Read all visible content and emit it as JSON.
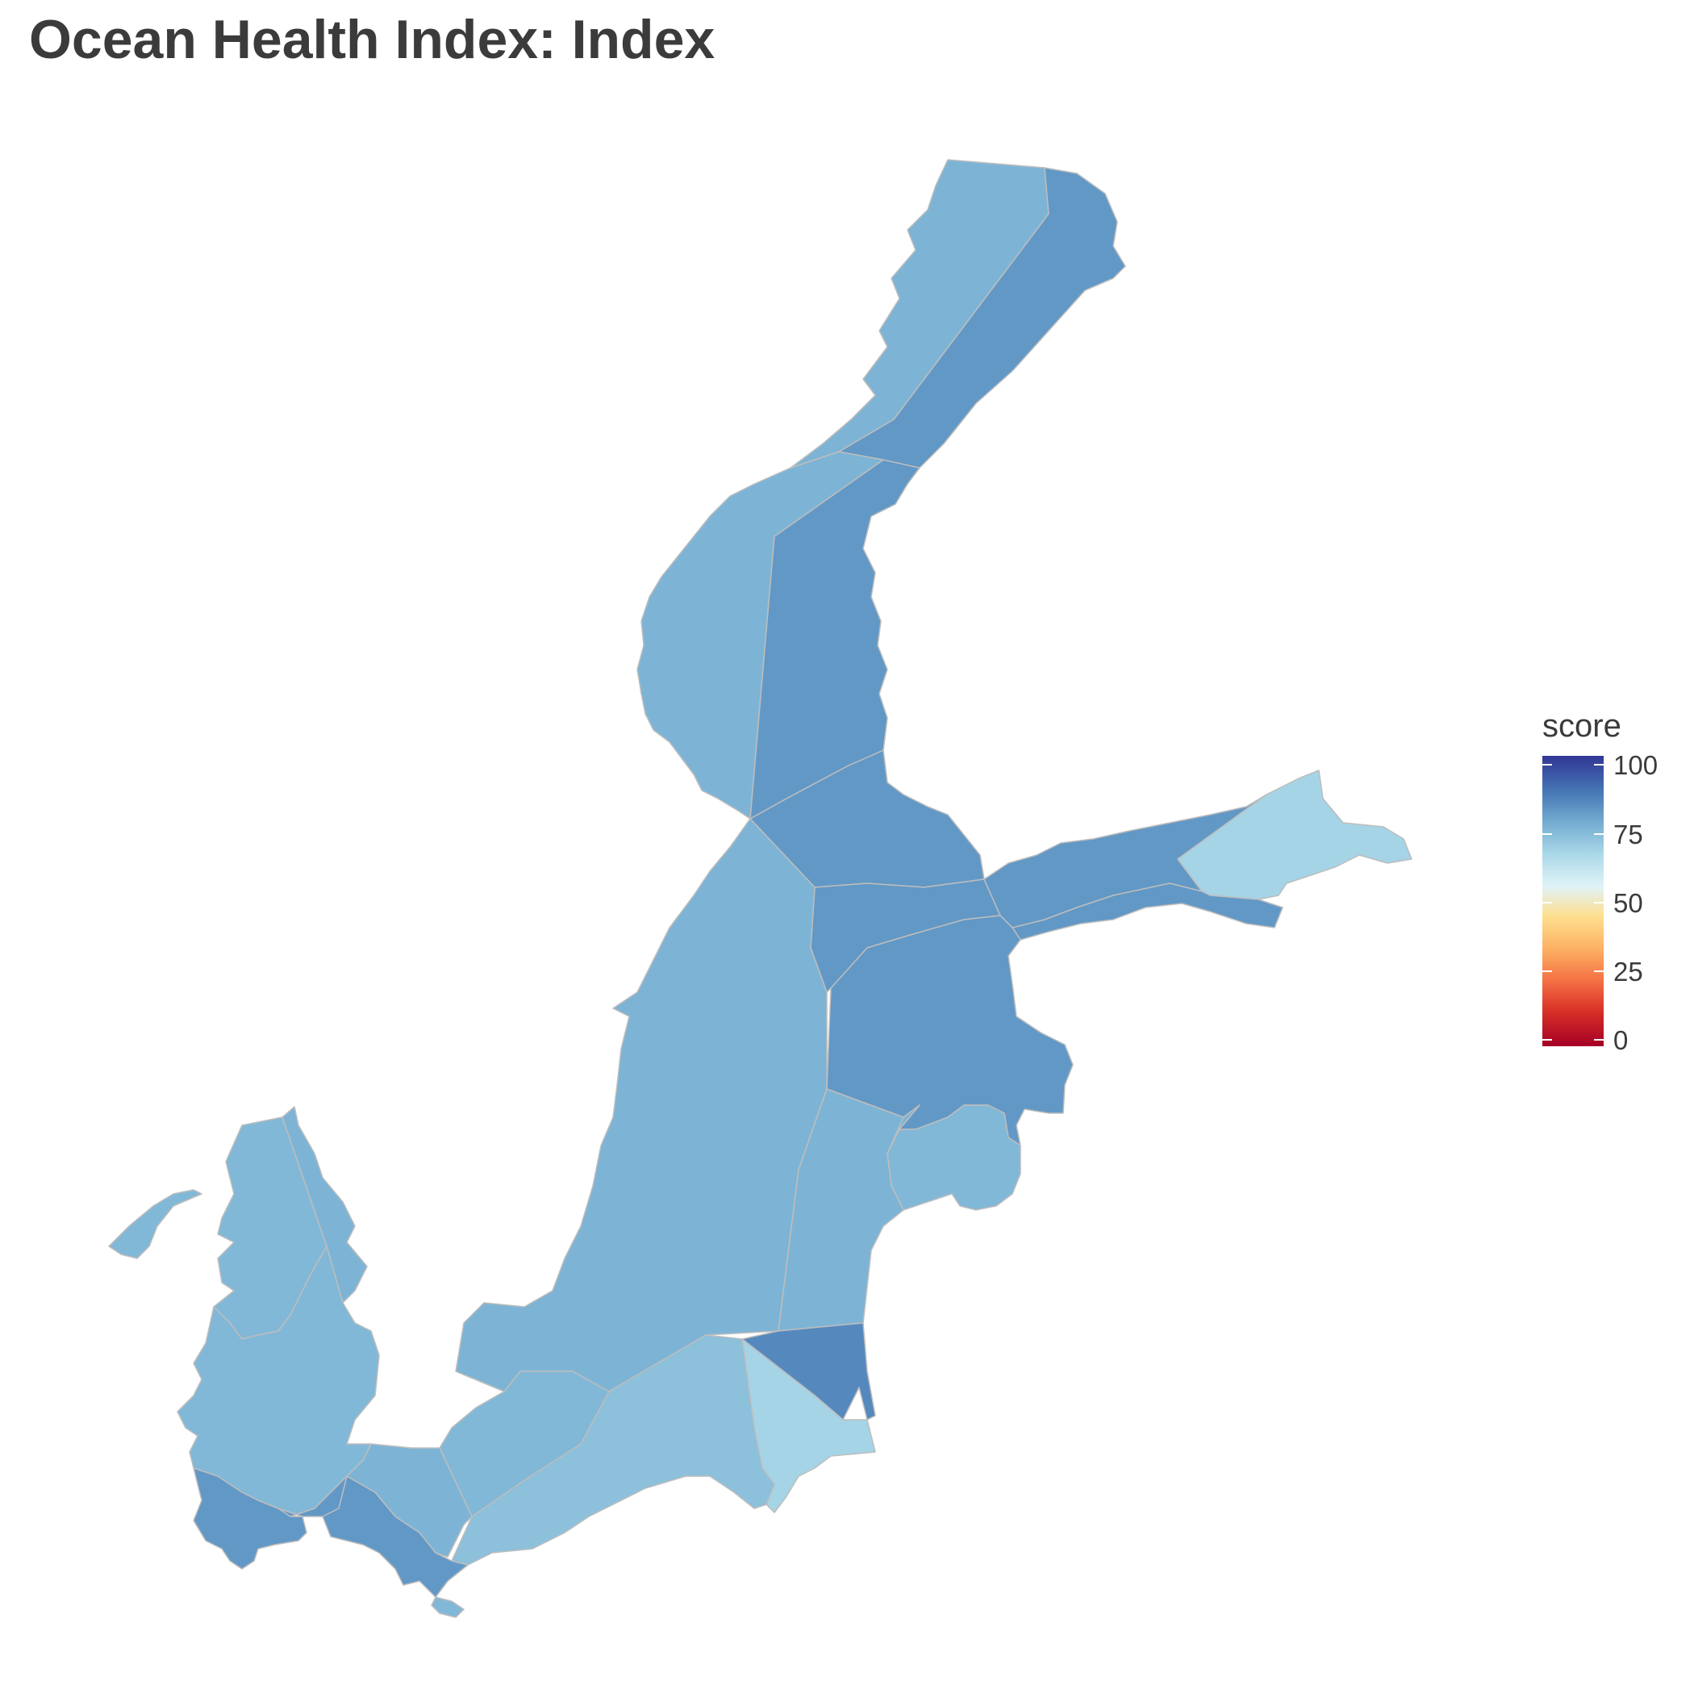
{
  "title": "Ocean Health Index: Index",
  "legend": {
    "title": "score",
    "ticks": [
      "100",
      "75",
      "50",
      "25",
      "0"
    ],
    "range": [
      0,
      100
    ],
    "palette": [
      "#a50026",
      "#d73027",
      "#f46d43",
      "#fdae61",
      "#fee090",
      "#e0f3f8",
      "#abd9e9",
      "#74add1",
      "#4575b4",
      "#313695"
    ]
  },
  "map": {
    "region": "Baltic Sea",
    "border_color": "#bdbdbd",
    "land_color": "#ffffff",
    "regions": [
      {
        "id": "bothnian-bay-west",
        "score": 76
      },
      {
        "id": "bothnian-bay-east",
        "score": 82
      },
      {
        "id": "bothnian-sea-west",
        "score": 76
      },
      {
        "id": "bothnian-sea-east",
        "score": 82
      },
      {
        "id": "aland-archipelago",
        "score": 82
      },
      {
        "id": "northern-baltic-proper",
        "score": 82
      },
      {
        "id": "gulf-of-finland-north",
        "score": 82
      },
      {
        "id": "gulf-of-finland-east",
        "score": 68
      },
      {
        "id": "gulf-of-riga",
        "score": 82
      },
      {
        "id": "western-gotland-basin",
        "score": 76
      },
      {
        "id": "eastern-gotland-basin-north",
        "score": 76
      },
      {
        "id": "eastern-gotland-basin-south",
        "score": 75
      },
      {
        "id": "gulf-of-gdansk-east",
        "score": 85
      },
      {
        "id": "gulf-of-gdansk-west",
        "score": 68
      },
      {
        "id": "bornholm-basin",
        "score": 73
      },
      {
        "id": "arkona-basin",
        "score": 75
      },
      {
        "id": "kattegat-west",
        "score": 75
      },
      {
        "id": "kattegat-east",
        "score": 76
      },
      {
        "id": "the-sound-belts",
        "score": 75
      },
      {
        "id": "kiel-bay",
        "score": 82
      },
      {
        "id": "mecklenburg-bight",
        "score": 82
      }
    ]
  }
}
